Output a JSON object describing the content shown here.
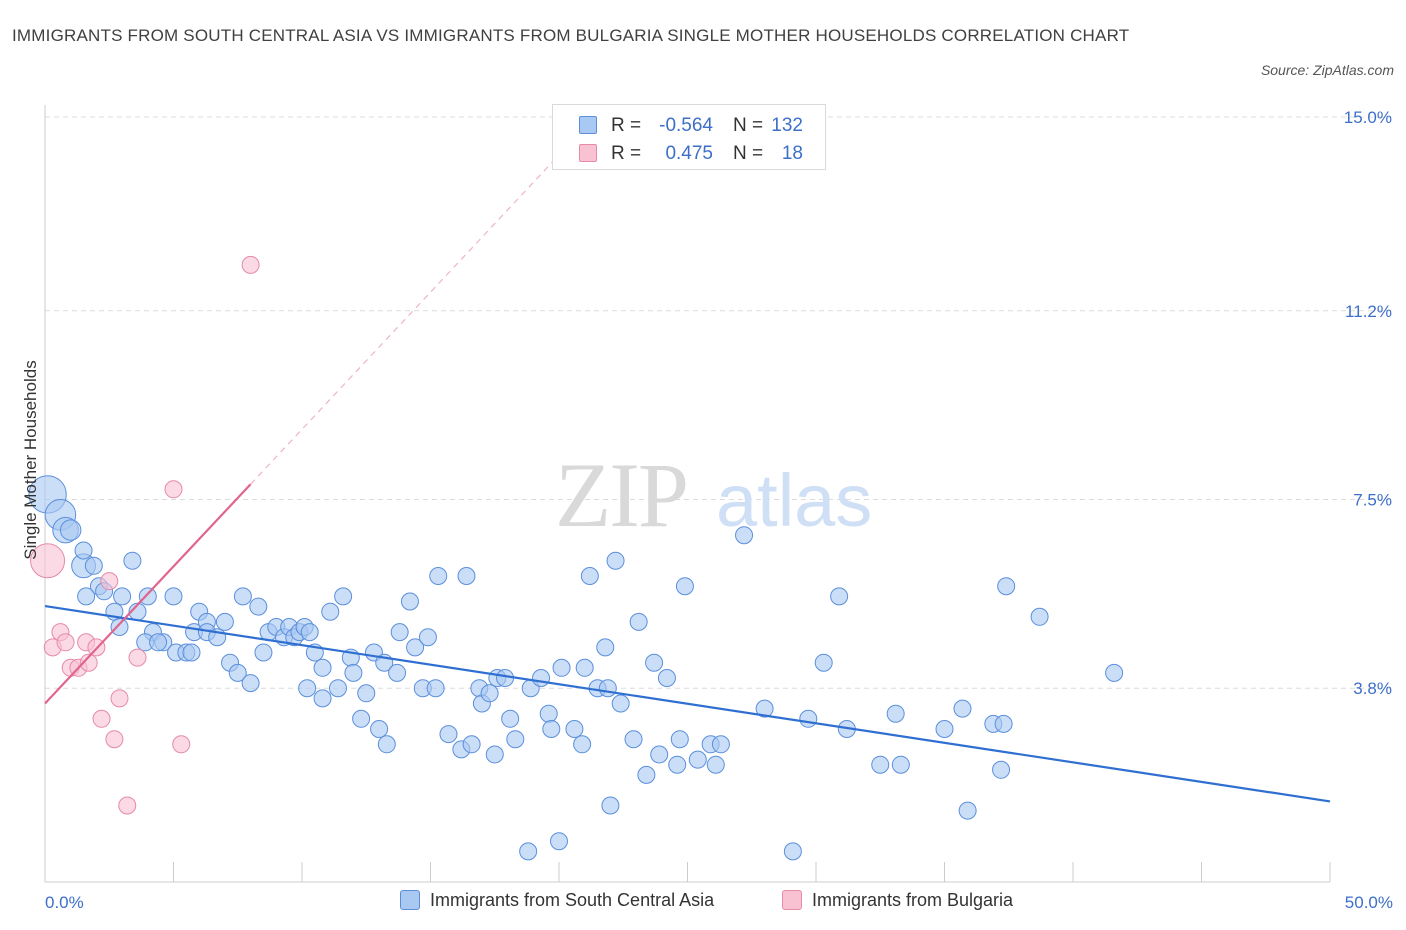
{
  "header": {
    "title": "IMMIGRANTS FROM SOUTH CENTRAL ASIA VS IMMIGRANTS FROM BULGARIA SINGLE MOTHER HOUSEHOLDS CORRELATION CHART",
    "source": "Source: ZipAtlas.com"
  },
  "stats": {
    "rows": [
      {
        "r_label": "R =",
        "r_value": "-0.564",
        "n_label": "N =",
        "n_value": "132"
      },
      {
        "r_label": "R =",
        "r_value": "0.475",
        "n_label": "N =",
        "n_value": "18"
      }
    ]
  },
  "legend": {
    "items": [
      {
        "label": "Immigrants from South Central Asia"
      },
      {
        "label": "Immigrants from Bulgaria"
      }
    ]
  },
  "colors": {
    "blue_fill": "#a9c8f2",
    "blue_stroke": "#5b8fdc",
    "blue_line": "#2f6fd1",
    "pink_fill": "#f8c2d3",
    "pink_stroke": "#e68aa7",
    "pink_line": "#e0658e",
    "grid": "#dcdcdc",
    "tick_text": "#3d6fc9"
  },
  "chart_data": {
    "type": "scatter",
    "title": "IMMIGRANTS FROM SOUTH CENTRAL ASIA VS IMMIGRANTS FROM BULGARIA SINGLE MOTHER HOUSEHOLDS CORRELATION CHART",
    "xlabel": "",
    "ylabel": "Single Mother Households",
    "xlim": [
      0,
      50
    ],
    "ylim": [
      0,
      15
    ],
    "x_tick_labels": [
      "0.0%",
      "50.0%"
    ],
    "y_ticks": [
      3.8,
      7.5,
      11.2,
      15.0
    ],
    "y_tick_labels": [
      "3.8%",
      "7.5%",
      "11.2%",
      "15.0%"
    ],
    "grid": true,
    "watermark": "ZIPatlas",
    "legend_position": "bottom-center",
    "series": [
      {
        "name": "Immigrants from South Central Asia",
        "R": -0.564,
        "N": 132,
        "trend": {
          "x": [
            0,
            50
          ],
          "y": [
            5.41,
            1.58
          ]
        },
        "points": [
          [
            0.1,
            7.6,
            2.2
          ],
          [
            0.6,
            7.2,
            1.8
          ],
          [
            0.8,
            6.9,
            1.5
          ],
          [
            1.0,
            6.9,
            1.2
          ],
          [
            1.5,
            6.2,
            1.4
          ],
          [
            1.5,
            6.5,
            1.0
          ],
          [
            1.9,
            6.2,
            1.0
          ],
          [
            2.1,
            5.8,
            1.0
          ],
          [
            1.6,
            5.6,
            1.0
          ],
          [
            2.3,
            5.7,
            1.0
          ],
          [
            2.7,
            5.3,
            1.0
          ],
          [
            3.0,
            5.6,
            1.0
          ],
          [
            3.4,
            6.3,
            1.0
          ],
          [
            2.9,
            5.0,
            1.0
          ],
          [
            3.6,
            5.3,
            1.0
          ],
          [
            4.0,
            5.6,
            1.0
          ],
          [
            4.2,
            4.9,
            1.0
          ],
          [
            3.9,
            4.7,
            1.0
          ],
          [
            4.6,
            4.7,
            1.0
          ],
          [
            4.4,
            4.7,
            1.0
          ],
          [
            5.0,
            5.6,
            1.0
          ],
          [
            5.1,
            4.5,
            1.0
          ],
          [
            5.5,
            4.5,
            1.0
          ],
          [
            5.7,
            4.5,
            1.0
          ],
          [
            5.8,
            4.9,
            1.0
          ],
          [
            6.0,
            5.3,
            1.0
          ],
          [
            6.3,
            5.1,
            1.0
          ],
          [
            6.3,
            4.9,
            1.0
          ],
          [
            6.7,
            4.8,
            1.0
          ],
          [
            7.0,
            5.1,
            1.0
          ],
          [
            7.2,
            4.3,
            1.0
          ],
          [
            7.5,
            4.1,
            1.0
          ],
          [
            7.7,
            5.6,
            1.0
          ],
          [
            8.0,
            3.9,
            1.0
          ],
          [
            8.3,
            5.4,
            1.0
          ],
          [
            8.5,
            4.5,
            1.0
          ],
          [
            8.7,
            4.9,
            1.0
          ],
          [
            9.0,
            5.0,
            1.0
          ],
          [
            9.3,
            4.8,
            1.0
          ],
          [
            9.5,
            5.0,
            1.0
          ],
          [
            9.7,
            4.8,
            1.0
          ],
          [
            9.9,
            4.9,
            1.0
          ],
          [
            10.1,
            5.0,
            1.0
          ],
          [
            10.3,
            4.9,
            1.0
          ],
          [
            10.2,
            3.8,
            1.0
          ],
          [
            10.5,
            4.5,
            1.0
          ],
          [
            10.8,
            4.2,
            1.0
          ],
          [
            10.8,
            3.6,
            1.0
          ],
          [
            11.1,
            5.3,
            1.0
          ],
          [
            11.4,
            3.8,
            1.0
          ],
          [
            11.6,
            5.6,
            1.0
          ],
          [
            11.9,
            4.4,
            1.0
          ],
          [
            12.0,
            4.1,
            1.0
          ],
          [
            12.3,
            3.2,
            1.0
          ],
          [
            12.5,
            3.7,
            1.0
          ],
          [
            12.8,
            4.5,
            1.0
          ],
          [
            13.0,
            3.0,
            1.0
          ],
          [
            13.2,
            4.3,
            1.0
          ],
          [
            13.3,
            2.7,
            1.0
          ],
          [
            13.7,
            4.1,
            1.0
          ],
          [
            13.8,
            4.9,
            1.0
          ],
          [
            14.2,
            5.5,
            1.0
          ],
          [
            14.4,
            4.6,
            1.0
          ],
          [
            14.7,
            3.8,
            1.0
          ],
          [
            14.9,
            4.8,
            1.0
          ],
          [
            15.2,
            3.8,
            1.0
          ],
          [
            15.3,
            6.0,
            1.0
          ],
          [
            15.7,
            2.9,
            1.0
          ],
          [
            16.2,
            2.6,
            1.0
          ],
          [
            16.4,
            6.0,
            1.0
          ],
          [
            16.6,
            2.7,
            1.0
          ],
          [
            16.9,
            3.8,
            1.0
          ],
          [
            17.0,
            3.5,
            1.0
          ],
          [
            17.3,
            3.7,
            1.0
          ],
          [
            17.5,
            2.5,
            1.0
          ],
          [
            17.6,
            4.0,
            1.0
          ],
          [
            17.9,
            4.0,
            1.0
          ],
          [
            18.1,
            3.2,
            1.0
          ],
          [
            18.3,
            2.8,
            1.0
          ],
          [
            18.8,
            0.6,
            1.0
          ],
          [
            18.9,
            3.8,
            1.0
          ],
          [
            19.3,
            4.0,
            1.0
          ],
          [
            19.6,
            3.3,
            1.0
          ],
          [
            19.7,
            3.0,
            1.0
          ],
          [
            20.0,
            0.8,
            1.0
          ],
          [
            20.1,
            4.2,
            1.0
          ],
          [
            20.6,
            3.0,
            1.0
          ],
          [
            20.9,
            2.7,
            1.0
          ],
          [
            21.0,
            4.2,
            1.0
          ],
          [
            21.2,
            6.0,
            1.0
          ],
          [
            21.5,
            3.8,
            1.0
          ],
          [
            21.8,
            4.6,
            1.0
          ],
          [
            21.9,
            3.8,
            1.0
          ],
          [
            22.0,
            1.5,
            1.0
          ],
          [
            22.2,
            6.3,
            1.0
          ],
          [
            22.4,
            3.5,
            1.0
          ],
          [
            22.9,
            2.8,
            1.0
          ],
          [
            23.1,
            5.1,
            1.0
          ],
          [
            23.4,
            2.1,
            1.0
          ],
          [
            23.7,
            4.3,
            1.0
          ],
          [
            23.9,
            2.5,
            1.0
          ],
          [
            24.2,
            4.0,
            1.0
          ],
          [
            24.6,
            2.3,
            1.0
          ],
          [
            24.7,
            2.8,
            1.0
          ],
          [
            24.9,
            5.8,
            1.0
          ],
          [
            25.4,
            2.4,
            1.0
          ],
          [
            25.9,
            2.7,
            1.0
          ],
          [
            26.1,
            2.3,
            1.0
          ],
          [
            26.3,
            2.7,
            1.0
          ],
          [
            27.2,
            6.8,
            1.0
          ],
          [
            28.0,
            3.4,
            1.0
          ],
          [
            29.1,
            0.6,
            1.0
          ],
          [
            29.7,
            3.2,
            1.0
          ],
          [
            30.3,
            4.3,
            1.0
          ],
          [
            30.9,
            5.6,
            1.0
          ],
          [
            31.2,
            3.0,
            1.0
          ],
          [
            32.5,
            2.3,
            1.0
          ],
          [
            33.1,
            3.3,
            1.0
          ],
          [
            33.3,
            2.3,
            1.0
          ],
          [
            35.0,
            3.0,
            1.0
          ],
          [
            35.7,
            3.4,
            1.0
          ],
          [
            35.9,
            1.4,
            1.0
          ],
          [
            36.9,
            3.1,
            1.0
          ],
          [
            37.3,
            3.1,
            1.0
          ],
          [
            37.2,
            2.2,
            1.0
          ],
          [
            37.4,
            5.8,
            1.0
          ],
          [
            38.7,
            5.2,
            1.0
          ],
          [
            41.6,
            4.1,
            1.0
          ]
        ]
      },
      {
        "name": "Immigrants from Bulgaria",
        "R": 0.475,
        "N": 18,
        "trend": {
          "x": [
            0,
            8.0
          ],
          "y": [
            3.5,
            7.8
          ]
        },
        "trend_extension": {
          "x": [
            8.0,
            19.9
          ],
          "y": [
            7.8,
            14.2
          ]
        },
        "points": [
          [
            0.1,
            6.3,
            2.0
          ],
          [
            0.3,
            4.6,
            1.0
          ],
          [
            0.6,
            4.9,
            1.0
          ],
          [
            0.8,
            4.7,
            1.0
          ],
          [
            1.0,
            4.2,
            1.0
          ],
          [
            1.3,
            4.2,
            1.0
          ],
          [
            1.6,
            4.7,
            1.0
          ],
          [
            1.7,
            4.3,
            1.0
          ],
          [
            2.0,
            4.6,
            1.0
          ],
          [
            2.2,
            3.2,
            1.0
          ],
          [
            2.5,
            5.9,
            1.0
          ],
          [
            2.7,
            2.8,
            1.0
          ],
          [
            2.9,
            3.6,
            1.0
          ],
          [
            3.2,
            1.5,
            1.0
          ],
          [
            3.6,
            4.4,
            1.0
          ],
          [
            5.0,
            7.7,
            1.0
          ],
          [
            5.3,
            2.7,
            1.0
          ],
          [
            8.0,
            12.1,
            1.0
          ]
        ]
      }
    ]
  }
}
